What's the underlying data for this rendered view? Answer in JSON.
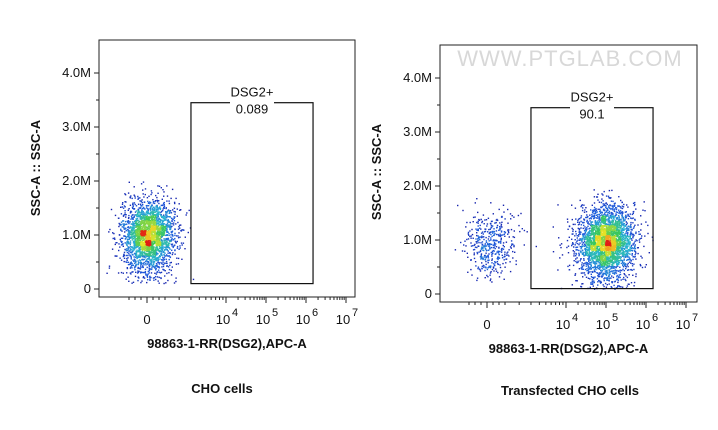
{
  "watermark": "WWW.PTGLAB.COM",
  "chart_data": [
    {
      "type": "scatter",
      "caption": "CHO cells",
      "xlabel": "98863-1-RR(DSG2),APC-A",
      "ylabel": "SSC-A :: SSC-A",
      "x_scale": "biexponential",
      "x_ticks": [
        {
          "label": "0",
          "exp": null,
          "value": 0
        },
        {
          "label": "10",
          "exp": "4",
          "value": 10000
        },
        {
          "label": "10",
          "exp": "5",
          "value": 100000
        },
        {
          "label": "10",
          "exp": "6",
          "value": 1000000
        },
        {
          "label": "10",
          "exp": "7",
          "value": 10000000
        }
      ],
      "y_ticks": [
        {
          "label": "0",
          "value": 0
        },
        {
          "label": "1.0M",
          "value": 1000000
        },
        {
          "label": "2.0M",
          "value": 2000000
        },
        {
          "label": "3.0M",
          "value": 3000000
        },
        {
          "label": "4.0M",
          "value": 4000000
        }
      ],
      "ylim": [
        0,
        4500000
      ],
      "gate": {
        "name": "DSG2+",
        "value": "0.089",
        "x_range": [
          3000,
          1500000
        ],
        "y_range": [
          100000,
          3450000
        ]
      },
      "populations": [
        {
          "x_center": 100,
          "x_spread_decades": 0.0,
          "y_center": 1000000,
          "y_sd": 330000,
          "count": 2600
        }
      ],
      "colormap": "density (blue-green-yellow-red)"
    },
    {
      "type": "scatter",
      "caption": "Transfected CHO cells",
      "xlabel": "98863-1-RR(DSG2),APC-A",
      "ylabel": "SSC-A :: SSC-A",
      "x_scale": "biexponential",
      "x_ticks": [
        {
          "label": "0",
          "exp": null,
          "value": 0
        },
        {
          "label": "10",
          "exp": "4",
          "value": 10000
        },
        {
          "label": "10",
          "exp": "5",
          "value": 100000
        },
        {
          "label": "10",
          "exp": "6",
          "value": 1000000
        },
        {
          "label": "10",
          "exp": "7",
          "value": 10000000
        }
      ],
      "y_ticks": [
        {
          "label": "0",
          "value": 0
        },
        {
          "label": "1.0M",
          "value": 1000000
        },
        {
          "label": "2.0M",
          "value": 2000000
        },
        {
          "label": "3.0M",
          "value": 3000000
        },
        {
          "label": "4.0M",
          "value": 4000000
        }
      ],
      "ylim": [
        0,
        4500000
      ],
      "gate": {
        "name": "DSG2+",
        "value": "90.1",
        "x_range": [
          3000,
          1500000
        ],
        "y_range": [
          100000,
          3450000
        ]
      },
      "populations": [
        {
          "x_center": 100000,
          "x_spread_decades": 0.35,
          "y_center": 950000,
          "y_sd": 330000,
          "count": 3000
        },
        {
          "x_center": 300,
          "x_spread_decades": 0.0,
          "y_center": 950000,
          "y_sd": 300000,
          "count": 450
        }
      ],
      "colormap": "density (blue-green-yellow-red)"
    }
  ]
}
